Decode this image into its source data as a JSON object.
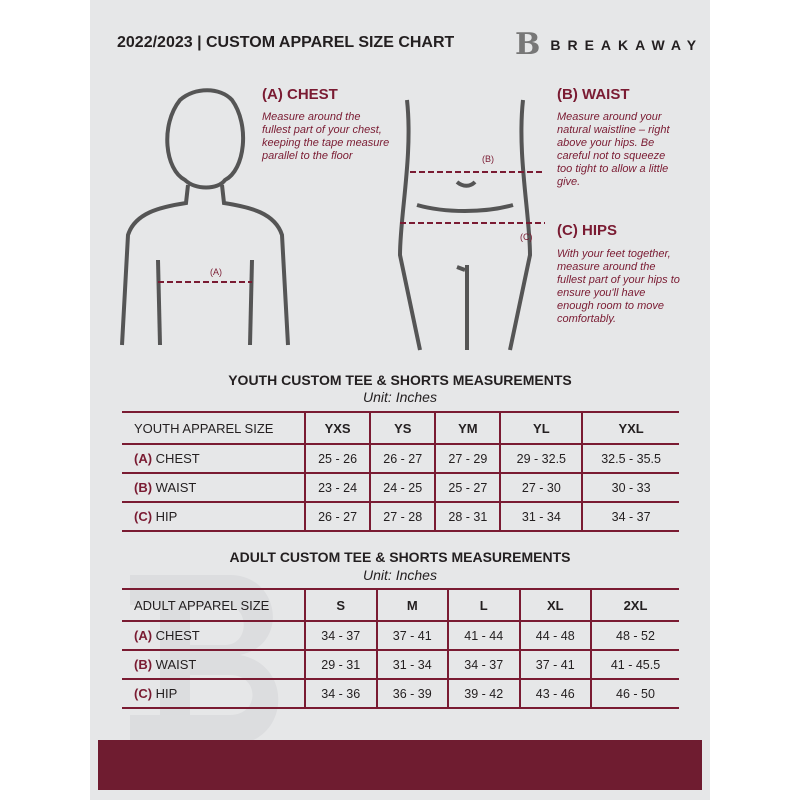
{
  "header": {
    "title": "2022/2023  |  CUSTOM APPAREL SIZE CHART",
    "logo_letter": "B",
    "brand": "BREAKAWAY"
  },
  "chest": {
    "heading": "(A) CHEST",
    "description": "Measure around the fullest part of your chest, keeping the tape measure parallel to the floor",
    "marker": "(A)"
  },
  "waist": {
    "heading": "(B) WAIST",
    "description": "Measure around your natural waistline – right above your hips. Be careful not to squeeze too tight to allow a little give.",
    "marker": "(B)"
  },
  "hips": {
    "heading": "(C) HIPS",
    "description": "With your feet together, measure around the fullest part of your hips to ensure you'll have enough room to move comfortably.",
    "marker": "(C)"
  },
  "colors": {
    "accent": "#7a1b32",
    "footer": "#6f1c30",
    "background": "#e6e7e8"
  },
  "youth": {
    "title": "YOUTH CUSTOM TEE & SHORTS MEASUREMENTS",
    "unit": "Unit: Inches",
    "header": [
      "YOUTH APPAREL SIZE",
      "YXS",
      "YS",
      "YM",
      "YL",
      "YXL"
    ],
    "rows": [
      {
        "letter": "(A)",
        "name": "CHEST",
        "values": [
          "25 - 26",
          "26 - 27",
          "27 - 29",
          "29 - 32.5",
          "32.5 - 35.5"
        ]
      },
      {
        "letter": "(B)",
        "name": "WAIST",
        "values": [
          "23 - 24",
          "24 - 25",
          "25 - 27",
          "27 - 30",
          "30 - 33"
        ]
      },
      {
        "letter": "(C)",
        "name": "HIP",
        "values": [
          "26 - 27",
          "27 - 28",
          "28 - 31",
          "31 - 34",
          "34 - 37"
        ]
      }
    ]
  },
  "adult": {
    "title": "ADULT CUSTOM TEE & SHORTS MEASUREMENTS",
    "unit": "Unit: Inches",
    "header": [
      "ADULT APPAREL SIZE",
      "S",
      "M",
      "L",
      "XL",
      "2XL"
    ],
    "rows": [
      {
        "letter": "(A)",
        "name": "CHEST",
        "values": [
          "34 - 37",
          "37 - 41",
          "41 - 44",
          "44 - 48",
          "48 - 52"
        ]
      },
      {
        "letter": "(B)",
        "name": "WAIST",
        "values": [
          "29 - 31",
          "31 - 34",
          "34 - 37",
          "37 - 41",
          "41 - 45.5"
        ]
      },
      {
        "letter": "(C)",
        "name": "HIP",
        "values": [
          "34 - 36",
          "36 - 39",
          "39 - 42",
          "43 - 46",
          "46 - 50"
        ]
      }
    ]
  }
}
